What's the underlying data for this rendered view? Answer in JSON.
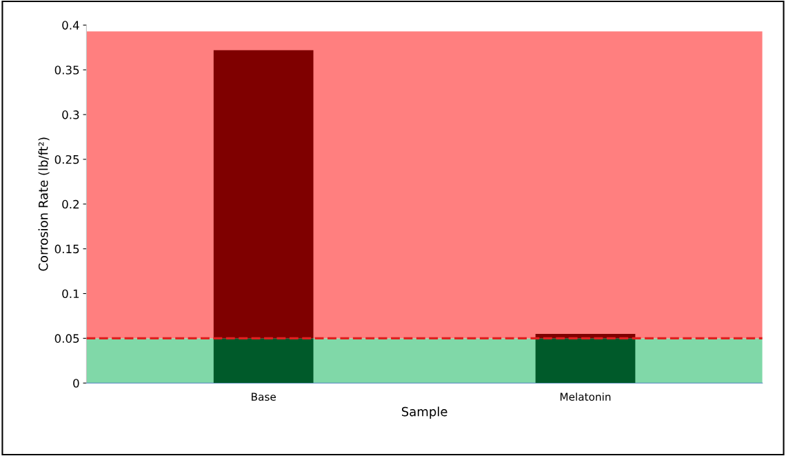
{
  "chart_data": {
    "type": "bar",
    "stacked": true,
    "xlabel": "Sample",
    "ylabel": "Corrosion Rate (lb/ft²)",
    "categories": [
      "Base",
      "Melatonin"
    ],
    "series": [
      {
        "color": "#005a2a",
        "values": [
          0.05,
          0.05
        ]
      },
      {
        "color": "#7f0000",
        "values": [
          0.322,
          0.005
        ]
      }
    ],
    "ylim": [
      0,
      0.4
    ],
    "yticks": [
      0,
      0.05,
      0.1,
      0.15,
      0.2,
      0.25,
      0.3,
      0.35,
      0.4
    ],
    "bands": [
      {
        "axis": "y",
        "from": 0,
        "to": 0.05,
        "color": "#80d8a8"
      },
      {
        "axis": "y",
        "from": 0.05,
        "to": 0.393,
        "color": "#ff7f7f"
      }
    ],
    "ref_lines": [
      {
        "axis": "y",
        "value": 0.05,
        "color": "#e02020",
        "line_style": "dashed"
      }
    ],
    "grid": false,
    "legend": false
  }
}
